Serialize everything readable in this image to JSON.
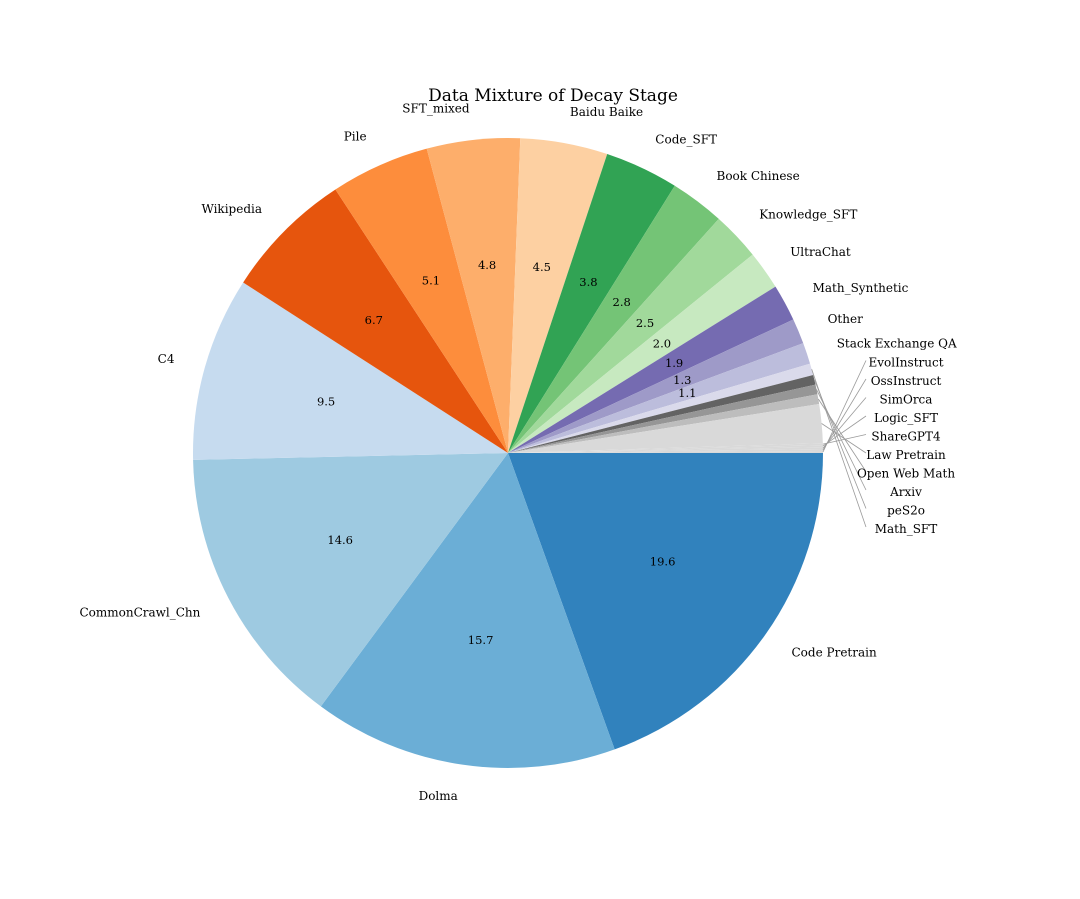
{
  "chart_data": {
    "type": "pie",
    "title": "Data Mixture of Decay Stage",
    "slices": [
      {
        "label": "Code Pretrain",
        "value": 19.6,
        "pct_label": "19.6",
        "color": "#3182bd"
      },
      {
        "label": "Dolma",
        "value": 15.7,
        "pct_label": "15.7",
        "color": "#6baed6"
      },
      {
        "label": "CommonCrawl_Chn",
        "value": 14.6,
        "pct_label": "14.6",
        "color": "#9ecae1"
      },
      {
        "label": "C4",
        "value": 9.5,
        "pct_label": "9.5",
        "color": "#c6dbef"
      },
      {
        "label": "Wikipedia",
        "value": 6.7,
        "pct_label": "6.7",
        "color": "#e6550d"
      },
      {
        "label": "Pile",
        "value": 5.1,
        "pct_label": "5.1",
        "color": "#fd8d3c"
      },
      {
        "label": "SFT_mixed",
        "value": 4.8,
        "pct_label": "4.8",
        "color": "#fdae6b"
      },
      {
        "label": "Baidu Baike",
        "value": 4.5,
        "pct_label": "4.5",
        "color": "#fdd0a2"
      },
      {
        "label": "Code_SFT",
        "value": 3.8,
        "pct_label": "3.8",
        "color": "#31a354"
      },
      {
        "label": "Book Chinese",
        "value": 2.8,
        "pct_label": "2.8",
        "color": "#74c476"
      },
      {
        "label": "Knowledge_SFT",
        "value": 2.5,
        "pct_label": "2.5",
        "color": "#a1d99b"
      },
      {
        "label": "UltraChat",
        "value": 2.0,
        "pct_label": "2.0",
        "color": "#c7e9c0"
      },
      {
        "label": "Math_Synthetic",
        "value": 1.9,
        "pct_label": "1.9",
        "color": "#756bb1"
      },
      {
        "label": "Other",
        "value": 1.3,
        "pct_label": "1.3",
        "color": "#9e9ac8"
      },
      {
        "label": "Stack Exchange QA",
        "value": 1.1,
        "pct_label": "1.1",
        "color": "#bcbddc"
      },
      {
        "label": "Math_SFT",
        "value": 0.6,
        "pct_label": "",
        "color": "#dadaeb"
      },
      {
        "label": "peS2o",
        "value": 0.5,
        "pct_label": "",
        "color": "#636363"
      },
      {
        "label": "Arxiv",
        "value": 0.5,
        "pct_label": "",
        "color": "#969696"
      },
      {
        "label": "Open Web Math",
        "value": 0.5,
        "pct_label": "",
        "color": "#bdbdbd"
      },
      {
        "label": "Law Pretrain",
        "value": 2.0,
        "pct_label": "",
        "color": "#d9d9d9"
      },
      {
        "label": "ShareGPT4",
        "value": 0.1,
        "pct_label": "",
        "color": "#d9d9d9"
      },
      {
        "label": "Logic_SFT",
        "value": 0.1,
        "pct_label": "",
        "color": "#d9d9d9"
      },
      {
        "label": "SimOrca",
        "value": 0.1,
        "pct_label": "",
        "color": "#d9d9d9"
      },
      {
        "label": "OssInstruct",
        "value": 0.1,
        "pct_label": "",
        "color": "#d9d9d9"
      },
      {
        "label": "EvolInstruct",
        "value": 0.1,
        "pct_label": "",
        "color": "#d9d9d9"
      }
    ]
  }
}
